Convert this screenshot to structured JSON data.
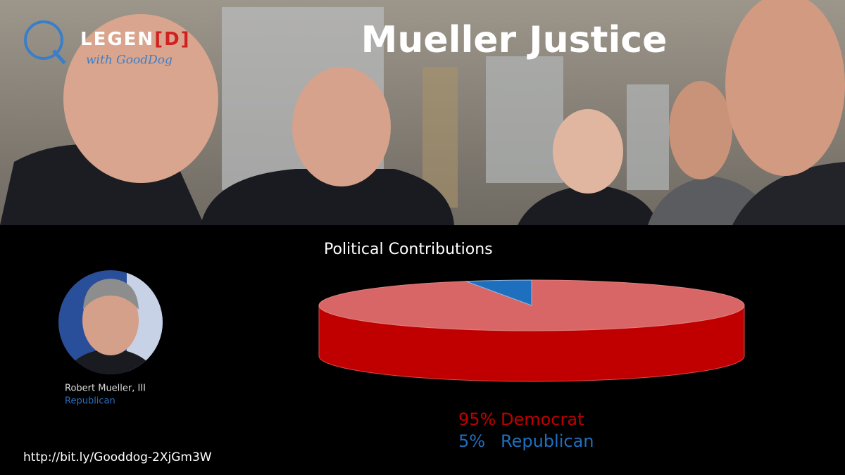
{
  "brand": {
    "name": "LEGEN",
    "mark": "[D]",
    "tagline": "with GoodDog"
  },
  "title": "Mueller Justice",
  "person": {
    "name": "Robert Mueller, III",
    "party": "Republican"
  },
  "url": "http://bit.ly/Gooddog-2XjGm3W",
  "chart_data": {
    "type": "pie",
    "title": "Political Contributions",
    "categories": [
      "Democrat",
      "Republican"
    ],
    "values": [
      95,
      5
    ],
    "value_labels": [
      "95%",
      "5%"
    ],
    "colors": [
      "#c00000",
      "#1f6fbf"
    ]
  }
}
